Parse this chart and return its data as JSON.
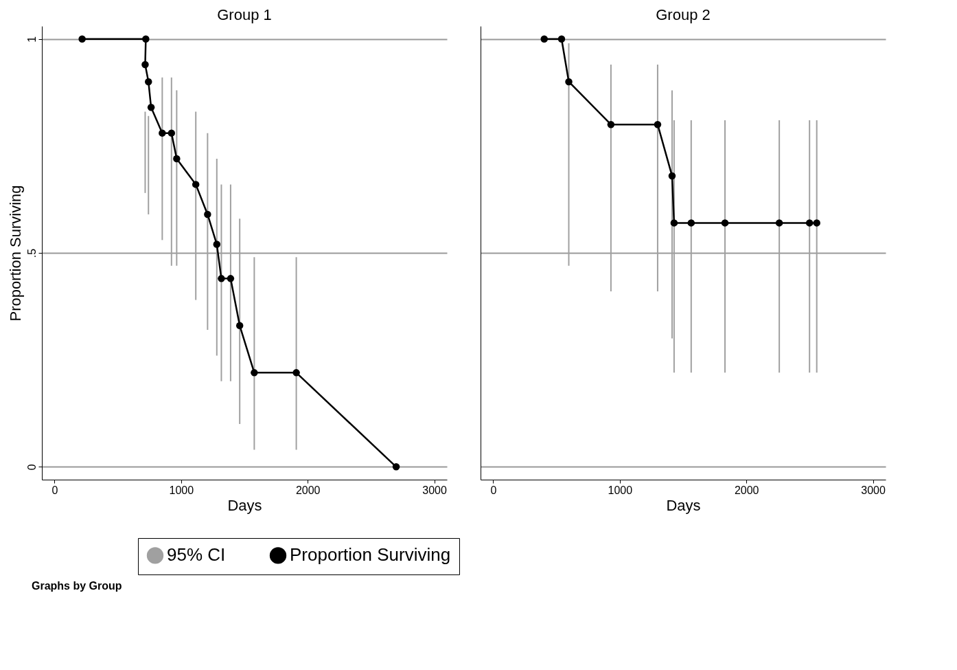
{
  "chart_data": [
    {
      "type": "line",
      "title": "Group 1",
      "xlabel": "Days",
      "ylabel": "Proportion Surviving",
      "xlim": [
        -100,
        3100
      ],
      "ylim": [
        -0.03,
        1.03
      ],
      "xticks": [
        0,
        1000,
        2000,
        3000
      ],
      "yticks": [
        0,
        {
          "value": 0.5,
          "label": ".5"
        },
        1
      ],
      "grid": "y",
      "marker": "circle",
      "legend": "bottom",
      "annotations": [
        "Graphs by Group"
      ],
      "series": [
        {
          "name": "95% CI",
          "type": "bar",
          "color": "#a0a0a0",
          "x": [
            716,
            742,
            851,
            924,
            965,
            1116,
            1209,
            1282,
            1318,
            1391,
            1463,
            1578,
            1910
          ],
          "base": [
            0.64,
            0.59,
            0.53,
            0.47,
            0.47,
            0.39,
            0.32,
            0.26,
            0.2,
            0.2,
            0.1,
            0.04,
            0.04
          ],
          "values": [
            0.19,
            0.23,
            0.38,
            0.44,
            0.41,
            0.44,
            0.46,
            0.46,
            0.46,
            0.46,
            0.48,
            0.45,
            0.45
          ]
        },
        {
          "name": "Proportion Surviving",
          "color": "#000000",
          "x": [
            218,
            721,
            716,
            742,
            763,
            851,
            924,
            965,
            1116,
            1209,
            1282,
            1318,
            1391,
            1463,
            1578,
            1910,
            2699
          ],
          "values": [
            1,
            1,
            0.94,
            0.9,
            0.84,
            0.78,
            0.78,
            0.72,
            0.66,
            0.59,
            0.52,
            0.44,
            0.44,
            0.33,
            0.22,
            0.22,
            0
          ]
        }
      ]
    },
    {
      "type": "line",
      "title": "Group 2",
      "xlabel": "Days",
      "xlim": [
        -100,
        3100
      ],
      "ylim": [
        -0.03,
        1.03
      ],
      "xticks": [
        0,
        1000,
        2000,
        3000
      ],
      "yticks": [
        0,
        0.5,
        1
      ],
      "grid": "y",
      "marker": "circle",
      "tick_labels": "x",
      "series": [
        {
          "type": "bar",
          "color": "#a0a0a0",
          "x": [
            597,
            930,
            1299,
            1413,
            1429,
            1564,
            1831,
            2260,
            2499,
            2556
          ],
          "base": [
            0.47,
            0.41,
            0.41,
            0.3,
            0.22,
            0.22,
            0.22,
            0.22,
            0.22,
            0.22
          ],
          "values": [
            0.52,
            0.53,
            0.53,
            0.58,
            0.59,
            0.59,
            0.59,
            0.59,
            0.59,
            0.59
          ]
        },
        {
          "color": "#000000",
          "x": [
            403,
            540,
            597,
            930,
            1299,
            1413,
            1429,
            1564,
            1831,
            2260,
            2499,
            2556
          ],
          "values": [
            1,
            1,
            0.9,
            0.8,
            0.8,
            0.68,
            0.57,
            0.57,
            0.57,
            0.57,
            0.57,
            0.57
          ]
        }
      ]
    }
  ]
}
